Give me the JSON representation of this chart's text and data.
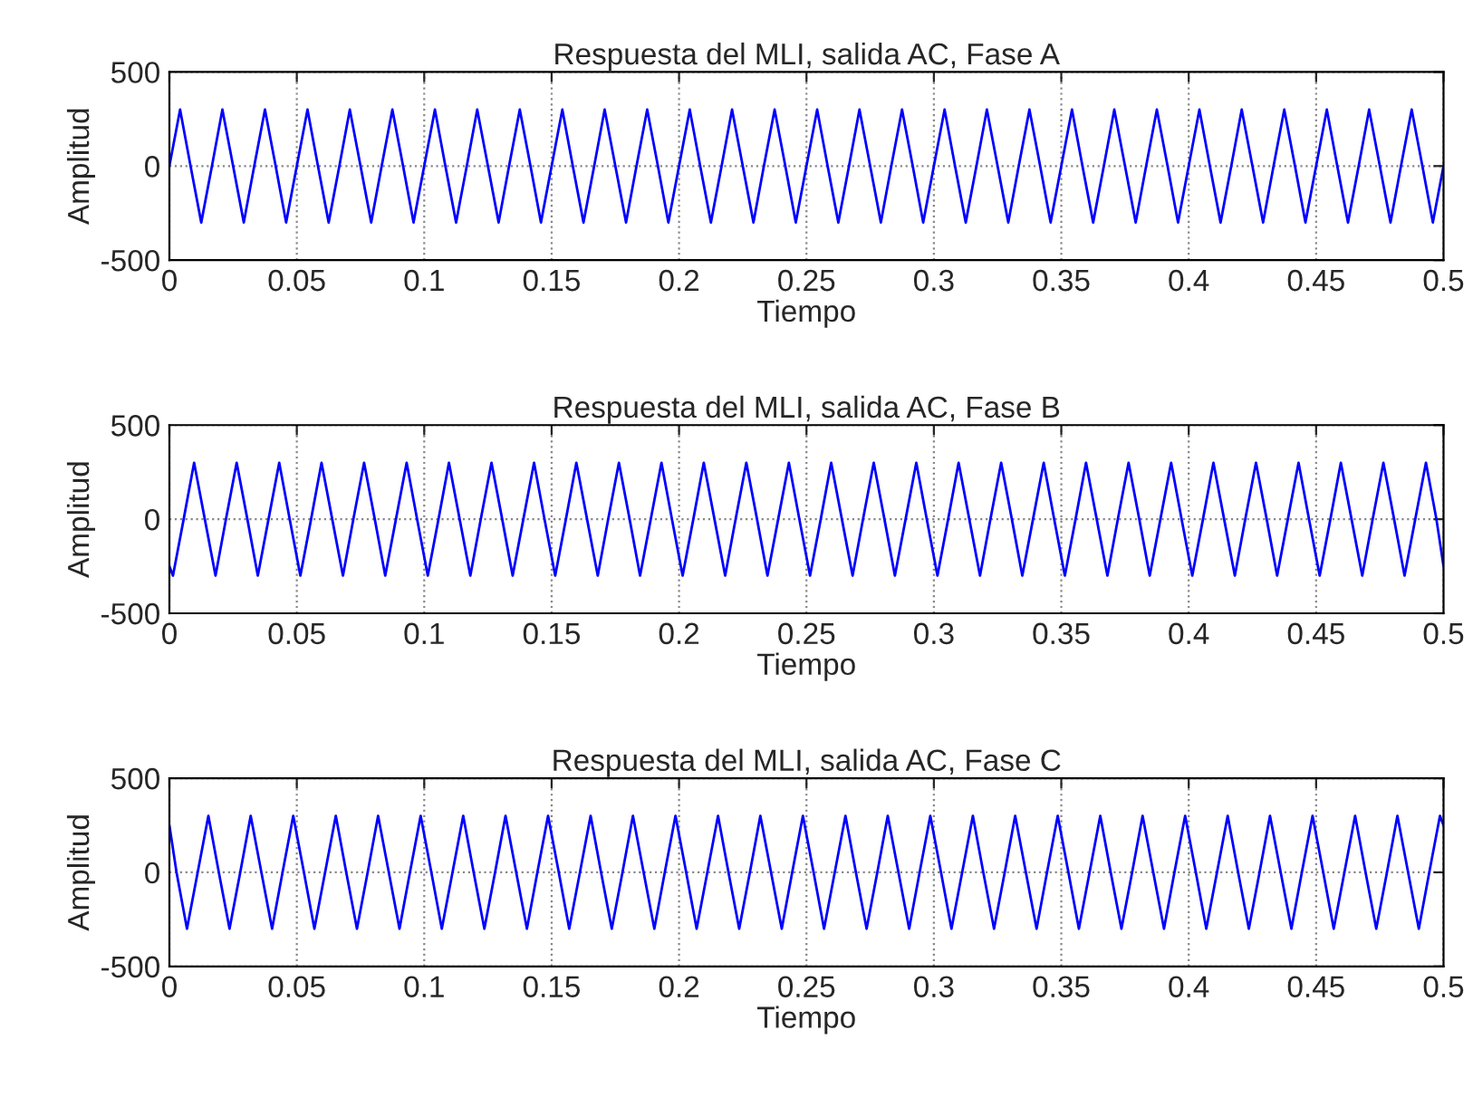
{
  "chart_data": [
    {
      "type": "line",
      "title": "Respuesta del MLI, salida AC, Fase A",
      "xlabel": "Tiempo",
      "ylabel": "Amplitud",
      "xlim": [
        0,
        0.5
      ],
      "xticks": [
        0,
        0.05,
        0.1,
        0.15,
        0.2,
        0.25,
        0.3,
        0.35,
        0.4,
        0.45,
        0.5
      ],
      "ylim": [
        -500,
        500
      ],
      "yticks": [
        -500,
        0,
        500
      ],
      "grid": true,
      "series": [
        {
          "color": "#0000ff",
          "x": [
            0,
            0.0042,
            0.0083,
            0.0125,
            0.0167,
            0.0208,
            0.025,
            0.0292,
            0.0333,
            0.0375,
            0.0417,
            0.0458,
            0.05,
            0.0542,
            0.0583,
            0.0625,
            0.0667,
            0.0708,
            0.075,
            0.0792,
            0.0833,
            0.0875,
            0.0917,
            0.0958,
            0.1,
            0.1042,
            0.1083,
            0.1125,
            0.1167,
            0.1208,
            0.125,
            0.1292,
            0.1333,
            0.1375,
            0.1417,
            0.1458,
            0.15,
            0.1542,
            0.1583,
            0.1625,
            0.1667,
            0.1708,
            0.175,
            0.1792,
            0.1833,
            0.1875,
            0.1917,
            0.1958,
            0.2,
            0.2042,
            0.2083,
            0.2125,
            0.2167,
            0.2208,
            0.225,
            0.2292,
            0.2333,
            0.2375,
            0.2417,
            0.2458,
            0.25,
            0.2542,
            0.2583,
            0.2625,
            0.2667,
            0.2708,
            0.275,
            0.2792,
            0.2833,
            0.2875,
            0.2917,
            0.2958,
            0.3,
            0.3042,
            0.3083,
            0.3125,
            0.3167,
            0.3208,
            0.325,
            0.3292,
            0.3333,
            0.3375,
            0.3417,
            0.3458,
            0.35,
            0.3542,
            0.3583,
            0.3625,
            0.3667,
            0.3708,
            0.375,
            0.3792,
            0.3833,
            0.3875,
            0.3917,
            0.3958,
            0.4,
            0.4042,
            0.4083,
            0.4125,
            0.4167,
            0.4208,
            0.425,
            0.4292,
            0.4333,
            0.4375,
            0.4417,
            0.4458,
            0.45,
            0.4542,
            0.4583,
            0.4625,
            0.4667,
            0.4708,
            0.475,
            0.4792,
            0.4833,
            0.4875,
            0.4917,
            0.4958,
            0.5
          ],
          "values": [
            0,
            300,
            0,
            -300,
            0,
            300,
            0,
            -300,
            0,
            300,
            0,
            -300,
            0,
            300,
            0,
            -300,
            0,
            300,
            0,
            -300,
            0,
            300,
            0,
            -300,
            0,
            300,
            0,
            -300,
            0,
            300,
            0,
            -300,
            0,
            300,
            0,
            -300,
            0,
            300,
            0,
            -300,
            0,
            300,
            0,
            -300,
            0,
            300,
            0,
            -300,
            0,
            300,
            0,
            -300,
            0,
            300,
            0,
            -300,
            0,
            300,
            0,
            -300,
            0,
            300,
            0,
            -300,
            0,
            300,
            0,
            -300,
            0,
            300,
            0,
            -300,
            0,
            300,
            0,
            -300,
            0,
            300,
            0,
            -300,
            0,
            300,
            0,
            -300,
            0,
            300,
            0,
            -300,
            0,
            300,
            0,
            -300,
            0,
            300,
            0,
            -300,
            0,
            300,
            0,
            -300,
            0,
            300,
            0,
            -300,
            0,
            300,
            0,
            -300,
            0,
            300,
            0,
            -300,
            0,
            300,
            0,
            -300,
            0,
            300,
            0,
            -300,
            0
          ]
        }
      ]
    },
    {
      "type": "line",
      "title": "Respuesta del MLI, salida AC, Fase B",
      "xlabel": "Tiempo",
      "ylabel": "Amplitud",
      "xlim": [
        0,
        0.5
      ],
      "xticks": [
        0,
        0.05,
        0.1,
        0.15,
        0.2,
        0.25,
        0.3,
        0.35,
        0.4,
        0.45,
        0.5
      ],
      "ylim": [
        -500,
        500
      ],
      "yticks": [
        -500,
        0,
        500
      ],
      "grid": true,
      "series": [
        {
          "color": "#0000ff",
          "x": [
            0,
            0.0014,
            0.0056,
            0.0097,
            0.0139,
            0.0181,
            0.0222,
            0.0264,
            0.0306,
            0.0347,
            0.0389,
            0.0431,
            0.0472,
            0.0514,
            0.0556,
            0.0597,
            0.0639,
            0.0681,
            0.0722,
            0.0764,
            0.0806,
            0.0847,
            0.0889,
            0.0931,
            0.0972,
            0.1014,
            0.1056,
            0.1097,
            0.1139,
            0.1181,
            0.1222,
            0.1264,
            0.1306,
            0.1347,
            0.1389,
            0.1431,
            0.1472,
            0.1514,
            0.1556,
            0.1597,
            0.1639,
            0.1681,
            0.1722,
            0.1764,
            0.1806,
            0.1847,
            0.1889,
            0.1931,
            0.1972,
            0.2014,
            0.2056,
            0.2097,
            0.2139,
            0.2181,
            0.2222,
            0.2264,
            0.2306,
            0.2347,
            0.2389,
            0.2431,
            0.2472,
            0.2514,
            0.2556,
            0.2597,
            0.2639,
            0.2681,
            0.2722,
            0.2764,
            0.2806,
            0.2847,
            0.2889,
            0.2931,
            0.2972,
            0.3014,
            0.3056,
            0.3097,
            0.3139,
            0.3181,
            0.3222,
            0.3264,
            0.3306,
            0.3347,
            0.3389,
            0.3431,
            0.3472,
            0.3514,
            0.3556,
            0.3597,
            0.3639,
            0.3681,
            0.3722,
            0.3764,
            0.3806,
            0.3847,
            0.3889,
            0.3931,
            0.3972,
            0.4014,
            0.4056,
            0.4097,
            0.4139,
            0.4181,
            0.4222,
            0.4264,
            0.4306,
            0.4347,
            0.4389,
            0.4431,
            0.4472,
            0.4514,
            0.4556,
            0.4597,
            0.4639,
            0.4681,
            0.4722,
            0.4764,
            0.4806,
            0.4847,
            0.4889,
            0.4931,
            0.4972,
            0.5
          ],
          "values": [
            -250,
            -300,
            0,
            300,
            0,
            -300,
            0,
            300,
            0,
            -300,
            0,
            300,
            0,
            -300,
            0,
            300,
            0,
            -300,
            0,
            300,
            0,
            -300,
            0,
            300,
            0,
            -300,
            0,
            300,
            0,
            -300,
            0,
            300,
            0,
            -300,
            0,
            300,
            0,
            -300,
            0,
            300,
            0,
            -300,
            0,
            300,
            0,
            -300,
            0,
            300,
            0,
            -300,
            0,
            300,
            0,
            -300,
            0,
            300,
            0,
            -300,
            0,
            300,
            0,
            -300,
            0,
            300,
            0,
            -300,
            0,
            300,
            0,
            -300,
            0,
            300,
            0,
            -300,
            0,
            300,
            0,
            -300,
            0,
            300,
            0,
            -300,
            0,
            300,
            0,
            -300,
            0,
            300,
            0,
            -300,
            0,
            300,
            0,
            -300,
            0,
            300,
            0,
            -300,
            0,
            300,
            0,
            -300,
            0,
            300,
            0,
            -300,
            0,
            300,
            0,
            -300,
            0,
            300,
            0,
            -300,
            0,
            300,
            0,
            -300,
            0,
            300,
            0,
            -250
          ]
        }
      ]
    },
    {
      "type": "line",
      "title": "Respuesta del MLI, salida AC, Fase C",
      "xlabel": "Tiempo",
      "ylabel": "Amplitud",
      "xlim": [
        0,
        0.5
      ],
      "xticks": [
        0,
        0.05,
        0.1,
        0.15,
        0.2,
        0.25,
        0.3,
        0.35,
        0.4,
        0.45,
        0.5
      ],
      "ylim": [
        -500,
        500
      ],
      "yticks": [
        -500,
        0,
        500
      ],
      "grid": true,
      "series": [
        {
          "color": "#0000ff",
          "x": [
            0,
            0.0028,
            0.0069,
            0.0111,
            0.0153,
            0.0194,
            0.0236,
            0.0278,
            0.0319,
            0.0361,
            0.0403,
            0.0444,
            0.0486,
            0.0528,
            0.0569,
            0.0611,
            0.0653,
            0.0694,
            0.0736,
            0.0778,
            0.0819,
            0.0861,
            0.0903,
            0.0944,
            0.0986,
            0.1028,
            0.1069,
            0.1111,
            0.1153,
            0.1194,
            0.1236,
            0.1278,
            0.1319,
            0.1361,
            0.1403,
            0.1444,
            0.1486,
            0.1528,
            0.1569,
            0.1611,
            0.1653,
            0.1694,
            0.1736,
            0.1778,
            0.1819,
            0.1861,
            0.1903,
            0.1944,
            0.1986,
            0.2028,
            0.2069,
            0.2111,
            0.2153,
            0.2194,
            0.2236,
            0.2278,
            0.2319,
            0.2361,
            0.2403,
            0.2444,
            0.2486,
            0.2528,
            0.2569,
            0.2611,
            0.2653,
            0.2694,
            0.2736,
            0.2778,
            0.2819,
            0.2861,
            0.2903,
            0.2944,
            0.2986,
            0.3028,
            0.3069,
            0.3111,
            0.3153,
            0.3194,
            0.3236,
            0.3278,
            0.3319,
            0.3361,
            0.3403,
            0.3444,
            0.3486,
            0.3528,
            0.3569,
            0.3611,
            0.3653,
            0.3694,
            0.3736,
            0.3778,
            0.3819,
            0.3861,
            0.3903,
            0.3944,
            0.3986,
            0.4028,
            0.4069,
            0.4111,
            0.4153,
            0.4194,
            0.4236,
            0.4278,
            0.4319,
            0.4361,
            0.4403,
            0.4444,
            0.4486,
            0.4528,
            0.4569,
            0.4611,
            0.4653,
            0.4694,
            0.4736,
            0.4778,
            0.4819,
            0.4861,
            0.4903,
            0.4944,
            0.4986,
            0.5
          ],
          "values": [
            250,
            0,
            -300,
            0,
            300,
            0,
            -300,
            0,
            300,
            0,
            -300,
            0,
            300,
            0,
            -300,
            0,
            300,
            0,
            -300,
            0,
            300,
            0,
            -300,
            0,
            300,
            0,
            -300,
            0,
            300,
            0,
            -300,
            0,
            300,
            0,
            -300,
            0,
            300,
            0,
            -300,
            0,
            300,
            0,
            -300,
            0,
            300,
            0,
            -300,
            0,
            300,
            0,
            -300,
            0,
            300,
            0,
            -300,
            0,
            300,
            0,
            -300,
            0,
            300,
            0,
            -300,
            0,
            300,
            0,
            -300,
            0,
            300,
            0,
            -300,
            0,
            300,
            0,
            -300,
            0,
            300,
            0,
            -300,
            0,
            300,
            0,
            -300,
            0,
            300,
            0,
            -300,
            0,
            300,
            0,
            -300,
            0,
            300,
            0,
            -300,
            0,
            300,
            0,
            -300,
            0,
            300,
            0,
            -300,
            0,
            300,
            0,
            -300,
            0,
            300,
            0,
            -300,
            0,
            300,
            0,
            -300,
            0,
            300,
            0,
            -300,
            0,
            300,
            250
          ]
        }
      ]
    }
  ]
}
